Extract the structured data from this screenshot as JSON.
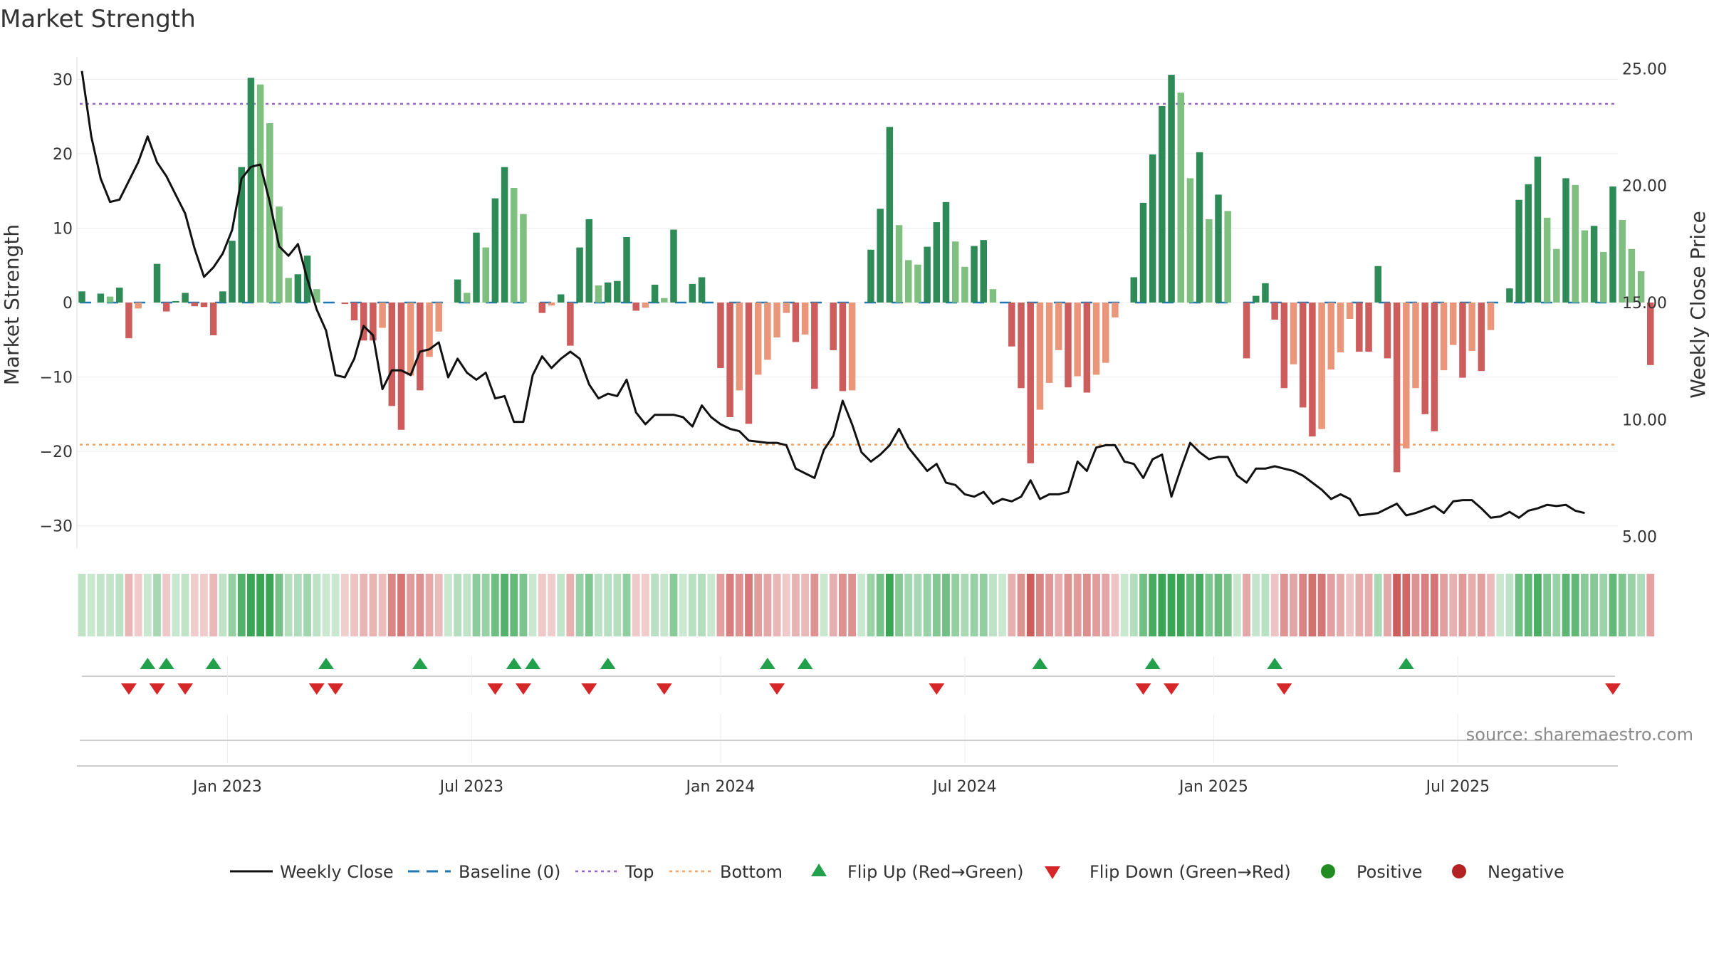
{
  "chart_data": {
    "type": "bar",
    "title": "Market Strength",
    "ylabel": "Market Strength",
    "y2label": "Weekly Close Price",
    "ylim": [
      -33,
      33
    ],
    "y2lim": [
      4.5,
      25.5
    ],
    "yticks": [
      30,
      20,
      10,
      0,
      -10,
      -20,
      -30
    ],
    "ytick_labels": [
      "30",
      "20",
      "10",
      "0",
      "−10",
      "−20",
      "−30"
    ],
    "y2ticks": [
      25,
      20,
      15,
      10,
      5
    ],
    "y2tick_labels": [
      "25.00",
      "20.00",
      "15.00",
      "10.00",
      "5.00"
    ],
    "top_line": 26.7,
    "bottom_line": -19.1,
    "week_range": [
      0,
      163
    ],
    "x_ticks": [
      {
        "week": 15.5,
        "label": "Jan 2023"
      },
      {
        "week": 41.5,
        "label": "Jul 2023"
      },
      {
        "week": 68,
        "label": "Jan 2024"
      },
      {
        "week": 94,
        "label": "Jul 2024"
      },
      {
        "week": 120.5,
        "label": "Jan 2025"
      },
      {
        "week": 146.5,
        "label": "Jul 2025"
      }
    ],
    "strength": [
      1.5,
      0,
      1.2,
      0.8,
      2,
      -4.8,
      -0.8,
      0,
      5.2,
      -1.2,
      0.2,
      1.3,
      -0.5,
      -0.6,
      -4.4,
      1.5,
      8.3,
      18.2,
      30.2,
      29.3,
      24.1,
      12.9,
      3.3,
      3.8,
      6.3,
      1.8,
      0,
      0,
      -0.2,
      -2.4,
      -5.1,
      -5.1,
      -3.4,
      -13.9,
      -17.1,
      -9.8,
      -11.8,
      -7.3,
      -3.9,
      0,
      3.1,
      1.3,
      9.4,
      7.4,
      14,
      18.2,
      15.4,
      11.9,
      0,
      -1.4,
      -0.4,
      1.1,
      -5.8,
      7.4,
      11.2,
      2.3,
      2.7,
      2.9,
      8.8,
      -1.1,
      -0.7,
      2.4,
      0.6,
      9.8,
      0,
      2.5,
      3.4,
      0,
      -8.8,
      -15.4,
      -11.8,
      -16.3,
      -9.7,
      -7.7,
      -4.7,
      -1.4,
      -5.3,
      -4.3,
      -11.6,
      0,
      -6.4,
      -11.9,
      -11.8,
      0,
      7.1,
      12.6,
      23.6,
      10.4,
      5.7,
      5.1,
      7.5,
      10.8,
      13.5,
      8.2,
      4.8,
      7.6,
      8.4,
      1.8,
      0,
      -5.9,
      -11.5,
      -21.6,
      -14.4,
      -10.8,
      -6.4,
      -11.4,
      -9.9,
      -12.1,
      -9.7,
      -8.1,
      -2,
      0,
      3.4,
      13.4,
      19.9,
      26.4,
      30.6,
      28.2,
      16.7,
      20.2,
      11.2,
      14.5,
      12.3,
      0,
      -7.5,
      0.9,
      2.6,
      -2.3,
      -11.5,
      -8.3,
      -14.1,
      -18,
      -17,
      -9,
      -6.7,
      -2.2,
      -6.6,
      -6.6,
      4.9,
      -7.5,
      -22.8,
      -19.6,
      -11.5,
      -15,
      -17.3,
      -9.1,
      -5.7,
      -10.1,
      -6.5,
      -9.2,
      -3.7,
      0,
      1.9,
      13.8,
      15.9,
      19.6,
      11.4,
      7.2,
      16.7,
      15.8,
      9.7,
      10.3,
      6.8,
      15.6,
      11.1,
      7.2,
      4.2,
      -8.4
    ],
    "weekly_close": [
      24.9,
      22.1,
      20.3,
      19.3,
      19.4,
      20.2,
      21,
      22.1,
      21,
      20.4,
      19.6,
      18.8,
      17.3,
      16.1,
      16.5,
      17.1,
      18.1,
      20.3,
      20.8,
      20.9,
      19.3,
      17.4,
      17,
      17.5,
      16,
      14.7,
      13.8,
      11.9,
      11.8,
      12.6,
      14,
      13.6,
      11.3,
      12.1,
      12.1,
      11.9,
      12.9,
      13,
      13.3,
      11.8,
      12.6,
      12,
      11.7,
      12,
      10.9,
      11,
      9.9,
      9.9,
      11.9,
      12.7,
      12.2,
      12.6,
      12.9,
      12.6,
      11.5,
      10.9,
      11.1,
      11,
      11.7,
      10.3,
      9.8,
      10.2,
      10.2,
      10.2,
      10.1,
      9.7,
      10.6,
      10.1,
      9.8,
      9.6,
      9.5,
      9.1,
      9.05,
      9,
      9,
      8.9,
      7.9,
      7.7,
      7.5,
      8.7,
      9.3,
      10.8,
      9.8,
      8.6,
      8.2,
      8.5,
      8.9,
      9.6,
      8.8,
      8.3,
      7.8,
      8.1,
      7.3,
      7.2,
      6.8,
      6.7,
      6.9,
      6.4,
      6.6,
      6.5,
      6.7,
      7.4,
      6.6,
      6.8,
      6.8,
      6.9,
      8.2,
      7.8,
      8.8,
      8.9,
      8.9,
      8.2,
      8.1,
      7.5,
      8.3,
      8.5,
      6.7,
      7.9,
      9,
      8.6,
      8.3,
      8.4,
      8.4,
      7.6,
      7.3,
      7.9,
      7.9,
      8,
      7.9,
      7.8,
      7.6,
      7.3,
      7,
      6.6,
      6.8,
      6.6,
      5.9,
      5.95,
      6,
      6.2,
      6.4,
      5.9,
      6,
      6.15,
      6.3,
      6,
      6.5,
      6.55,
      6.55,
      6.2,
      5.8,
      5.85,
      6.05,
      5.8,
      6.1,
      6.2,
      6.35,
      6.3,
      6.35,
      6.1,
      6
    ],
    "flip_up_weeks": [
      7,
      9,
      14,
      26,
      36,
      46,
      48,
      56,
      73,
      77,
      102,
      114,
      127,
      141
    ],
    "flip_down_weeks": [
      5,
      8,
      11,
      25,
      27,
      44,
      47,
      54,
      62,
      74,
      91,
      113,
      116,
      128,
      163
    ],
    "legend": [
      "Weekly Close",
      "Baseline (0)",
      "Top",
      "Bottom",
      "Flip Up (Red→Green)",
      "Flip Down (Green→Red)",
      "Positive",
      "Negative"
    ],
    "source": "source: sharemaestro.com"
  },
  "colors": {
    "strong_green": "#2e8b57",
    "light_green": "#7fbf7f",
    "strong_red": "#cd5c5c",
    "light_red": "#e9967a",
    "top_line": "#9966cc",
    "bottom_line": "#f4a460",
    "baseline": "#1f77b4",
    "close_line": "#111111",
    "flip_up": "#22a04b",
    "flip_down": "#d62728",
    "positive_dot": "#228b22",
    "negative_dot": "#b22222"
  }
}
